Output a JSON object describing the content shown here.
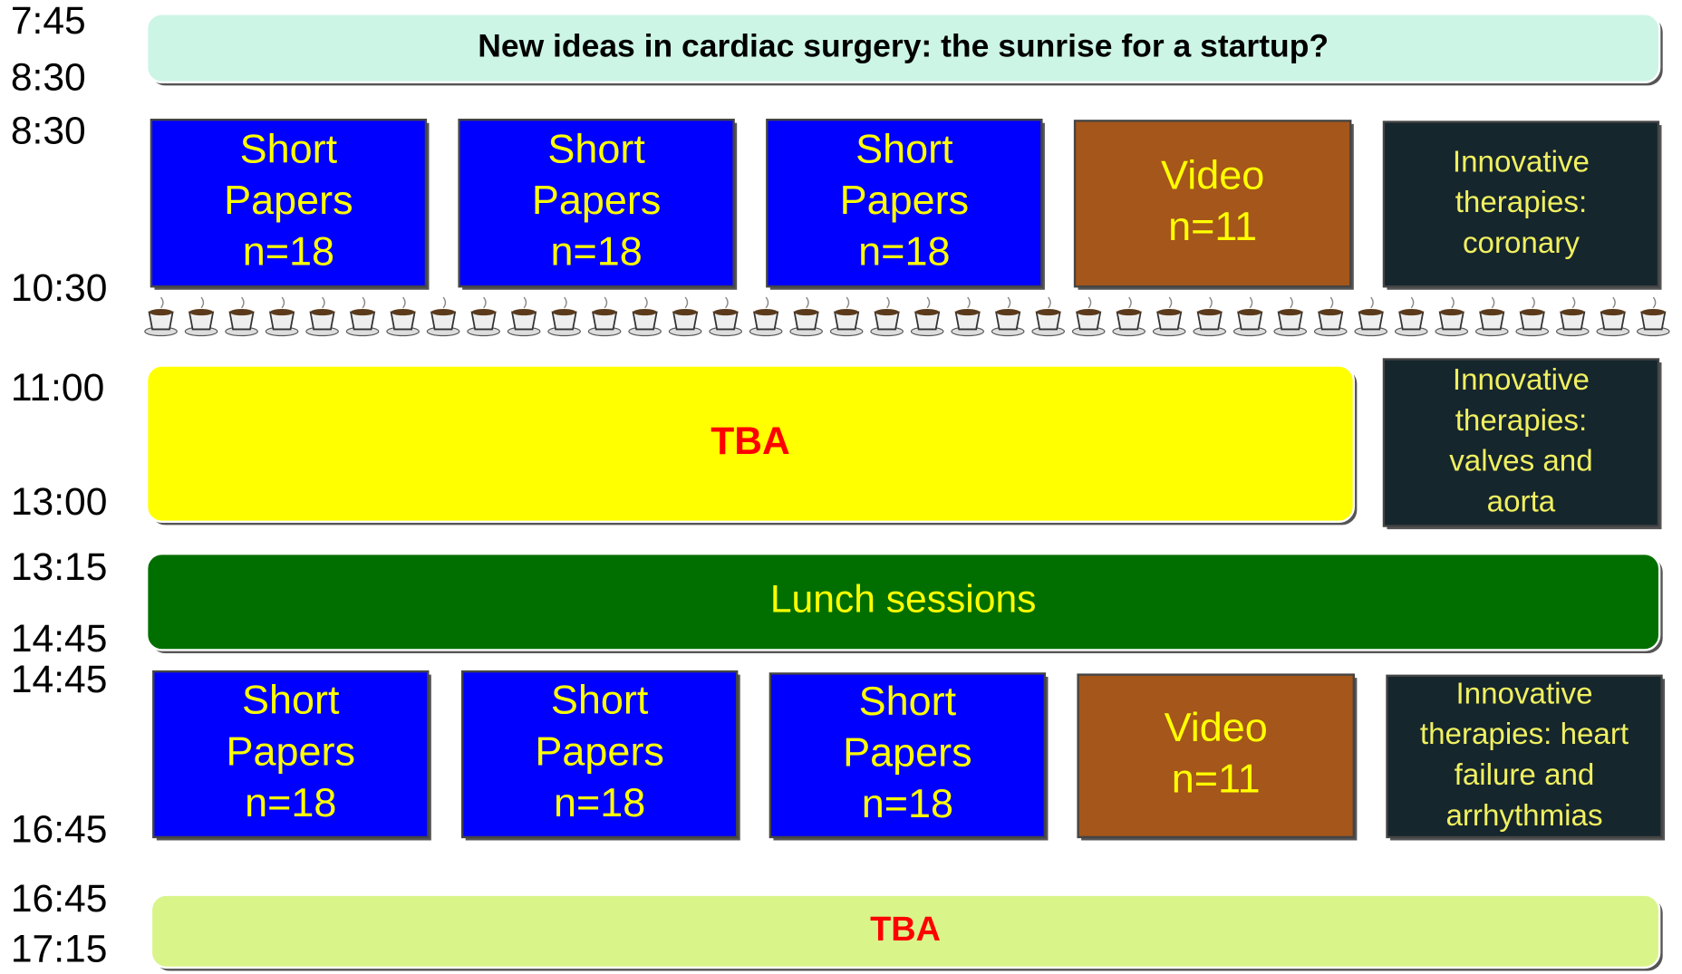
{
  "times": [
    "7:45",
    "8:30",
    "8:30",
    "10:30",
    "11:00",
    "13:00",
    "13:15",
    "14:45",
    "14:45",
    "16:45",
    "16:45",
    "17:15"
  ],
  "blocks": [
    {
      "lines": [
        "New ideas in cardiac surgery: the sunrise for a startup?"
      ]
    },
    {
      "lines": [
        "Short",
        "Papers",
        "n=18"
      ]
    },
    {
      "lines": [
        "Short",
        "Papers",
        "n=18"
      ]
    },
    {
      "lines": [
        "Short",
        "Papers",
        "n=18"
      ]
    },
    {
      "lines": [
        "Video",
        "n=11"
      ]
    },
    {
      "lines": [
        "Innovative",
        "therapies:",
        "coronary"
      ]
    },
    {
      "lines": [
        "TBA"
      ]
    },
    {
      "lines": [
        "Innovative",
        "therapies:",
        "valves and",
        "aorta"
      ]
    },
    {
      "lines": [
        "Lunch sessions"
      ]
    },
    {
      "lines": [
        "Short",
        "Papers",
        "n=18"
      ]
    },
    {
      "lines": [
        "Short",
        "Papers",
        "n=18"
      ]
    },
    {
      "lines": [
        "Short",
        "Papers",
        "n=18"
      ]
    },
    {
      "lines": [
        "Video",
        "n=11"
      ]
    },
    {
      "lines": [
        "Innovative",
        "therapies: heart",
        "failure and",
        "arrhythmias"
      ]
    },
    {
      "lines": [
        "TBA"
      ]
    }
  ]
}
